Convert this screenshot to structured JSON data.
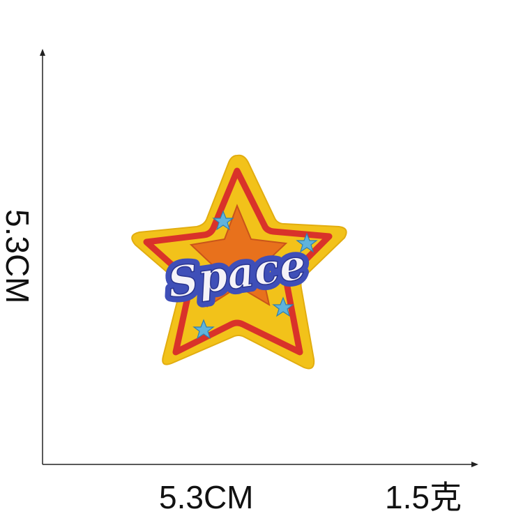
{
  "dimensions": {
    "width_label": "5.3CM",
    "height_label": "5.3CM",
    "weight_label": "1.5克"
  },
  "patch": {
    "text": "Space",
    "colors": {
      "felt_yellow": "#f2c21a",
      "border_red": "#d9322a",
      "inner_star_orange": "#e8711c",
      "text_white": "#f4f2f8",
      "text_outline_blue": "#3f4fb8",
      "small_star_blue": "#5fb3dc"
    }
  }
}
